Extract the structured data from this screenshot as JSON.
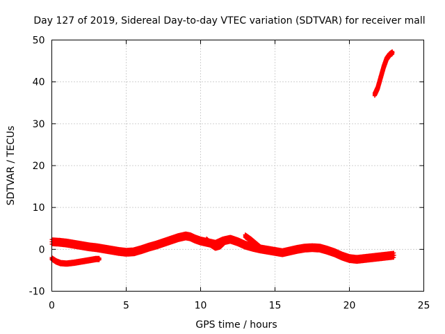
{
  "chart_data": {
    "type": "scatter",
    "title": "Day 127 of 2019, Sidereal Day-to-day VTEC variation (SDTVAR) for receiver mall",
    "xlabel": "GPS time / hours",
    "ylabel": "SDTVAR / TECUs",
    "xlim": [
      0,
      25
    ],
    "ylim": [
      -10,
      50
    ],
    "x_ticks": [
      0,
      5,
      10,
      15,
      20,
      25
    ],
    "y_ticks": [
      -10,
      0,
      10,
      20,
      30,
      40,
      50
    ],
    "grid": true,
    "marker": "plus",
    "color": "#ff0000",
    "series": [
      {
        "name": "main-track",
        "band": 1.1,
        "x": [
          0.0,
          0.5,
          1.0,
          1.5,
          2.0,
          2.5,
          3.0,
          3.5,
          4.0,
          4.5,
          5.0,
          5.5,
          6.0,
          6.5,
          7.0,
          7.5,
          8.0,
          8.5,
          9.0,
          9.3,
          9.6,
          10.0,
          10.5,
          11.0,
          11.5,
          12.0,
          12.5,
          13.0,
          13.5,
          14.0,
          14.5,
          15.0,
          15.5,
          16.0,
          16.5,
          17.0,
          17.5,
          18.0,
          18.5,
          19.0,
          19.5,
          20.0,
          20.5,
          21.0,
          21.5,
          22.0,
          22.5,
          23.0
        ],
        "y": [
          1.8,
          1.7,
          1.5,
          1.2,
          0.9,
          0.6,
          0.4,
          0.1,
          -0.2,
          -0.5,
          -0.7,
          -0.6,
          -0.1,
          0.5,
          1.0,
          1.6,
          2.2,
          2.8,
          3.2,
          3.0,
          2.5,
          2.0,
          1.6,
          1.2,
          2.0,
          2.4,
          1.8,
          1.0,
          0.5,
          0.1,
          -0.2,
          -0.5,
          -0.8,
          -0.4,
          0.0,
          0.3,
          0.4,
          0.3,
          -0.2,
          -0.8,
          -1.6,
          -2.2,
          -2.4,
          -2.2,
          -2.0,
          -1.8,
          -1.6,
          -1.4
        ]
      },
      {
        "name": "lower-arc",
        "band": 0.5,
        "x": [
          0.0,
          0.3,
          0.6,
          1.0,
          1.5,
          2.0,
          2.5,
          3.0,
          3.2
        ],
        "y": [
          -2.2,
          -2.9,
          -3.3,
          -3.4,
          -3.2,
          -2.9,
          -2.6,
          -2.3,
          -2.3
        ]
      },
      {
        "name": "dip-11",
        "band": 0.7,
        "x": [
          10.4,
          10.7,
          11.0,
          11.3,
          11.6
        ],
        "y": [
          2.2,
          1.2,
          0.5,
          0.8,
          1.8
        ]
      },
      {
        "name": "branch-13",
        "band": 0.6,
        "x": [
          13.0,
          13.4,
          13.8,
          14.2
        ],
        "y": [
          3.2,
          2.2,
          1.0,
          -0.2
        ]
      },
      {
        "name": "late-rise",
        "band": 0.6,
        "x": [
          21.7,
          21.9,
          22.1,
          22.3,
          22.5,
          22.7,
          22.9
        ],
        "y": [
          37.0,
          38.5,
          41.0,
          43.5,
          45.5,
          46.5,
          47.0
        ]
      }
    ]
  }
}
